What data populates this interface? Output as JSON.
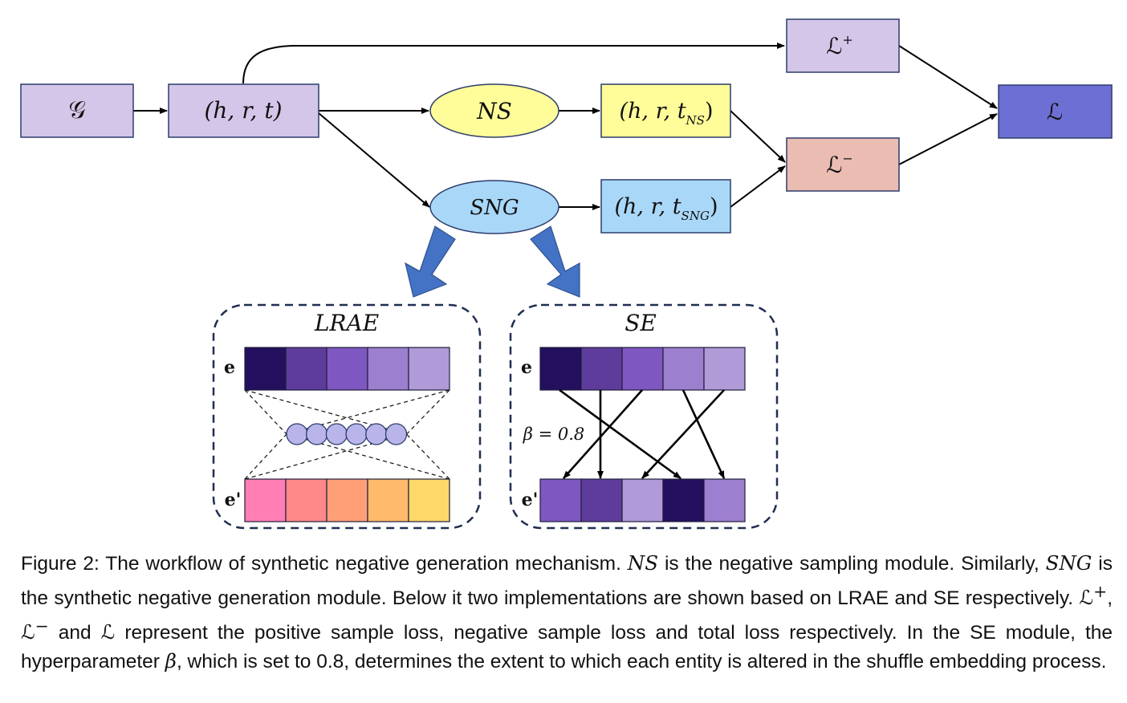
{
  "nodes": {
    "graph": "𝒢",
    "triple": "(h, r, t)",
    "ns": "NS",
    "sng": "SNG",
    "triple_ns": {
      "main": "(h, r, t",
      "sub": "NS",
      "close": ")"
    },
    "triple_sng": {
      "main": "(h, r, t",
      "sub": "SNG",
      "close": ")"
    },
    "loss_pos": {
      "base": "ℒ",
      "sup": "+"
    },
    "loss_neg": {
      "base": "ℒ",
      "sup": "−"
    },
    "loss_total": "ℒ"
  },
  "modules": {
    "lrae": {
      "title": "LRAE",
      "input_label": "e",
      "output_label": "e'",
      "input_colors": [
        "#24105e",
        "#5e3c9b",
        "#7f57c1",
        "#9d7fcf",
        "#b09ad8"
      ],
      "output_colors": [
        "#ff7eb4",
        "#ff8989",
        "#ff9f78",
        "#ffba6b",
        "#ffd86a"
      ],
      "latent_units": 6
    },
    "se": {
      "title": "SE",
      "input_label": "e",
      "output_label": "e'",
      "beta_label": "β = 0.8",
      "input_colors": [
        "#24105e",
        "#5e3c9b",
        "#7f57c1",
        "#9d7fcf",
        "#b09ad8"
      ],
      "output_colors": [
        "#7f57c1",
        "#5e3c9b",
        "#b09ad8",
        "#24105e",
        "#9d7fcf"
      ]
    }
  },
  "colors": {
    "purple_light": "#d4c6e8",
    "yellow": "#fffd99",
    "blue_light": "#a9d7f8",
    "pink": "#ebbcb2",
    "purple_dark": "#6e6fd4",
    "arrow_blue": "#4472c4",
    "latent": "#b9b5ea"
  },
  "caption": {
    "p1": "Figure 2: The workflow of synthetic negative generation mechanism. ",
    "ns": "NS",
    "p2": " is the negative sampling module. Similarly, ",
    "sng": "SNG",
    "p3": " is the synthetic negative generation module. Below it two implementations are shown based on LRAE and SE respectively. ",
    "lpos": "ℒ",
    "lpos_sup": "+",
    "comma": ", ",
    "lneg": "ℒ",
    "lneg_sup": "−",
    "and": " and ",
    "l": "ℒ",
    "p4": " represent the positive sample loss, negative sample loss and total loss respectively. In the SE module, the hyperparameter ",
    "beta": "β",
    "p5": ", which is set to 0.8, determines the extent to which each entity is altered in the shuffle embedding process."
  }
}
